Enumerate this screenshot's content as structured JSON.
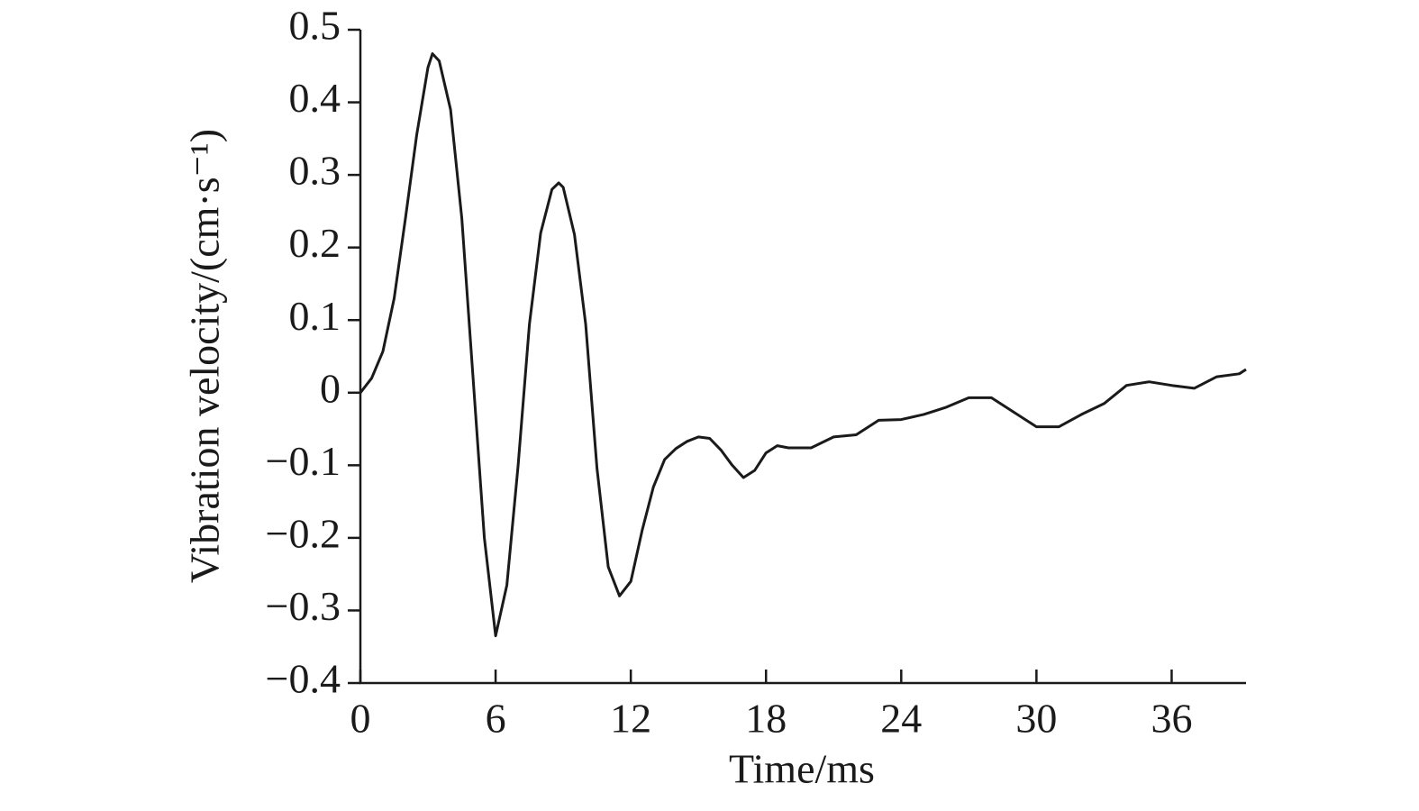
{
  "chart_data": {
    "type": "line",
    "x_label": "Time/ms",
    "y_label": "Vibration velocity/(cm·s⁻¹)",
    "x": [
      0,
      0.5,
      1,
      1.5,
      2,
      2.5,
      3,
      3.2,
      3.5,
      4,
      4.5,
      5,
      5.5,
      6,
      6.5,
      7,
      7.5,
      8,
      8.5,
      8.8,
      9,
      9.5,
      10,
      10.5,
      11,
      11.5,
      12,
      12.5,
      13,
      13.5,
      14,
      14.5,
      15,
      15.5,
      16,
      16.5,
      17,
      17.5,
      18,
      18.5,
      19,
      20,
      21,
      22,
      23,
      24,
      25,
      26,
      27,
      28,
      29,
      30,
      31,
      32,
      33,
      34,
      35,
      36,
      37,
      38,
      39,
      39.3
    ],
    "series": [
      {
        "name": null,
        "color": "#1a1a1a",
        "values": [
          0,
          0.02,
          0.057,
          0.13,
          0.24,
          0.355,
          0.448,
          0.467,
          0.457,
          0.39,
          0.24,
          0.02,
          -0.2,
          -0.335,
          -0.265,
          -0.1,
          0.094,
          0.22,
          0.28,
          0.289,
          0.283,
          0.218,
          0.094,
          -0.104,
          -0.24,
          -0.28,
          -0.26,
          -0.19,
          -0.13,
          -0.092,
          -0.077,
          -0.067,
          -0.061,
          -0.063,
          -0.079,
          -0.1,
          -0.117,
          -0.107,
          -0.083,
          -0.073,
          -0.076,
          -0.076,
          -0.061,
          -0.058,
          -0.038,
          -0.037,
          -0.03,
          -0.02,
          -0.007,
          -0.007,
          -0.027,
          -0.047,
          -0.047,
          -0.03,
          -0.015,
          0.01,
          0.015,
          0.01,
          0.006,
          0.022,
          0.026,
          0.032
        ]
      }
    ],
    "xlim": [
      0,
      39.3
    ],
    "ylim": [
      -0.4,
      0.5
    ],
    "xticks": [
      0,
      6,
      12,
      18,
      24,
      30,
      36
    ],
    "yticks": [
      {
        "value": -0.4,
        "label": "−0.4"
      },
      {
        "value": -0.3,
        "label": "−0.3"
      },
      {
        "value": -0.2,
        "label": "−0.2"
      },
      {
        "value": -0.1,
        "label": "−0.1"
      },
      0,
      0.1,
      0.2,
      0.3,
      0.4,
      0.5
    ],
    "grid": false
  }
}
